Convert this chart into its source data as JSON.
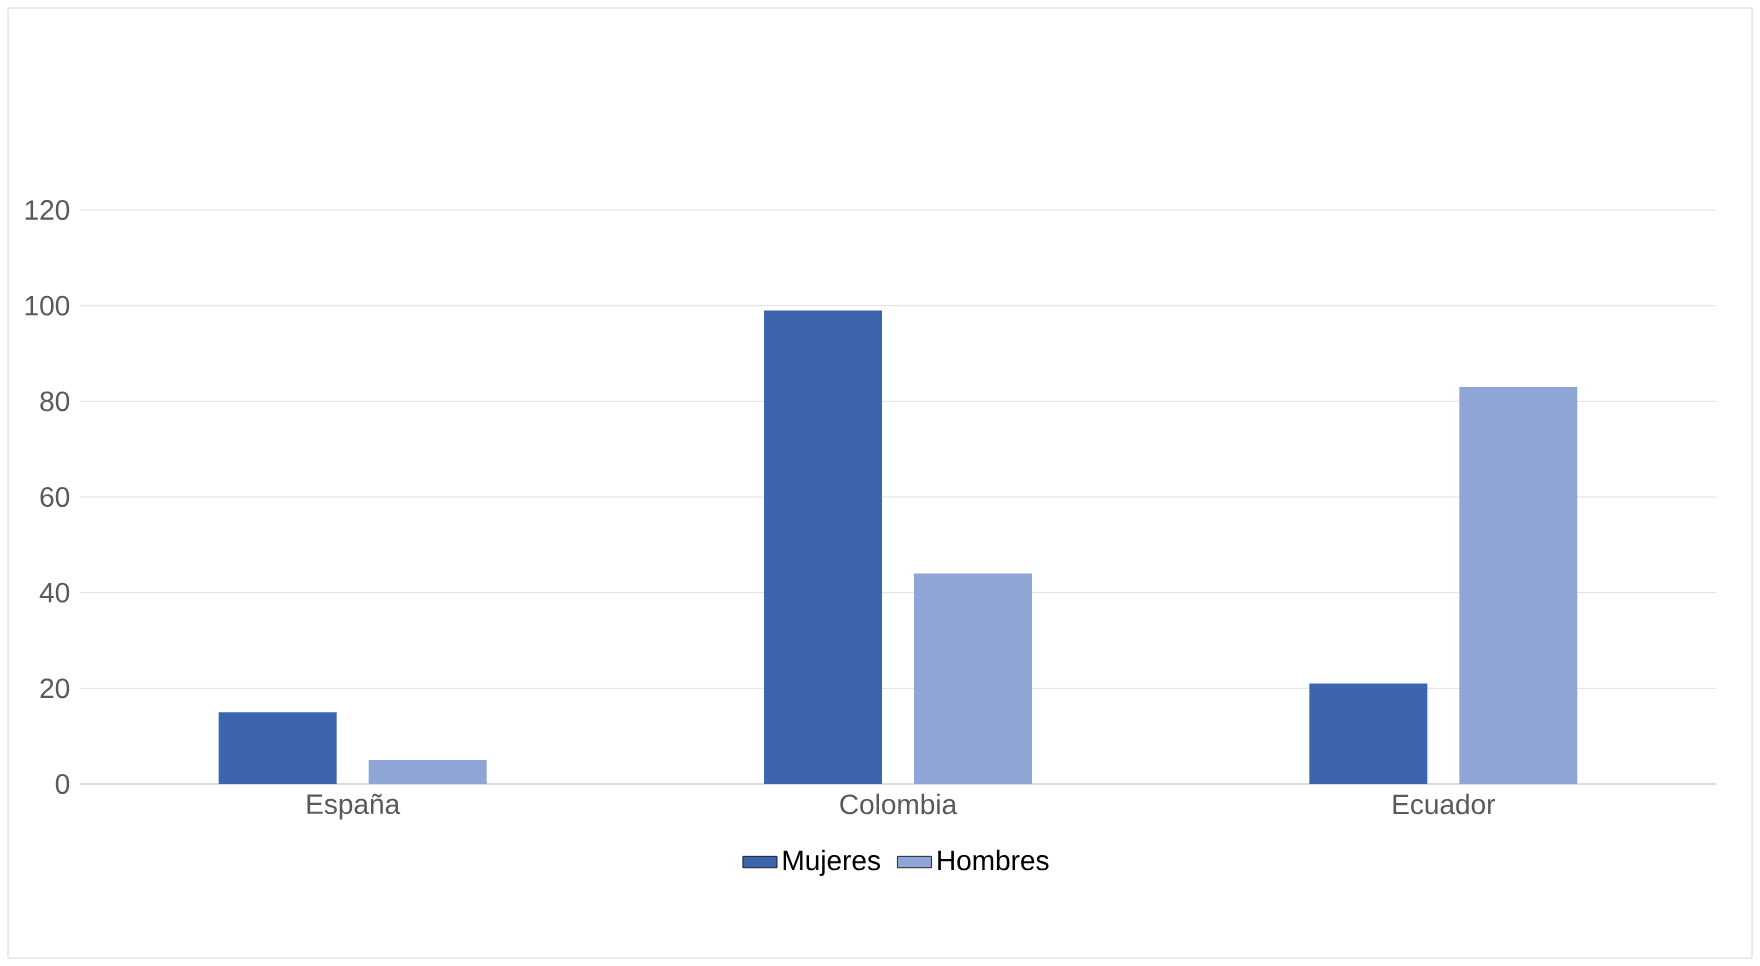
{
  "chart_data": {
    "type": "bar",
    "categories": [
      "España",
      "Colombia",
      "Ecuador"
    ],
    "series": [
      {
        "name": "Mujeres",
        "color": "#3c65ad",
        "values": [
          15,
          99,
          21
        ]
      },
      {
        "name": "Hombres",
        "color": "#8fa5d6",
        "values": [
          5,
          44,
          83
        ]
      }
    ],
    "ylim": [
      0,
      120
    ],
    "yticks": [
      0,
      20,
      40,
      60,
      80,
      100,
      120
    ],
    "grid": "y",
    "legend": "bottom"
  }
}
